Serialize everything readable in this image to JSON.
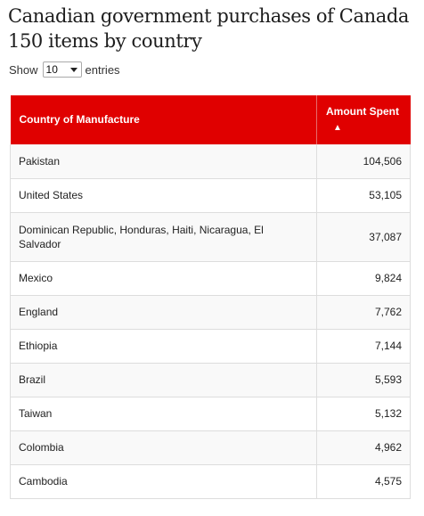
{
  "title": "Canadian government purchases of Canada 150 items by country",
  "length_menu": {
    "show_label": "Show",
    "selected": "10",
    "entries_label": "entries"
  },
  "table": {
    "headers": {
      "country": "Country of Manufacture",
      "amount": "Amount Spent",
      "sort_indicator": "▲"
    },
    "rows": [
      {
        "country": "Pakistan",
        "amount": "104,506"
      },
      {
        "country": "United States",
        "amount": "53,105"
      },
      {
        "country": "Dominican Republic, Honduras, Haiti, Nicaragua, El Salvador",
        "amount": "37,087"
      },
      {
        "country": "Mexico",
        "amount": "9,824"
      },
      {
        "country": "England",
        "amount": "7,762"
      },
      {
        "country": "Ethiopia",
        "amount": "7,144"
      },
      {
        "country": "Brazil",
        "amount": "5,593"
      },
      {
        "country": "Taiwan",
        "amount": "5,132"
      },
      {
        "country": "Colombia",
        "amount": "4,962"
      },
      {
        "country": "Cambodia",
        "amount": "4,575"
      }
    ]
  },
  "colors": {
    "header_bg": "#e00000",
    "header_text": "#ffffff"
  }
}
